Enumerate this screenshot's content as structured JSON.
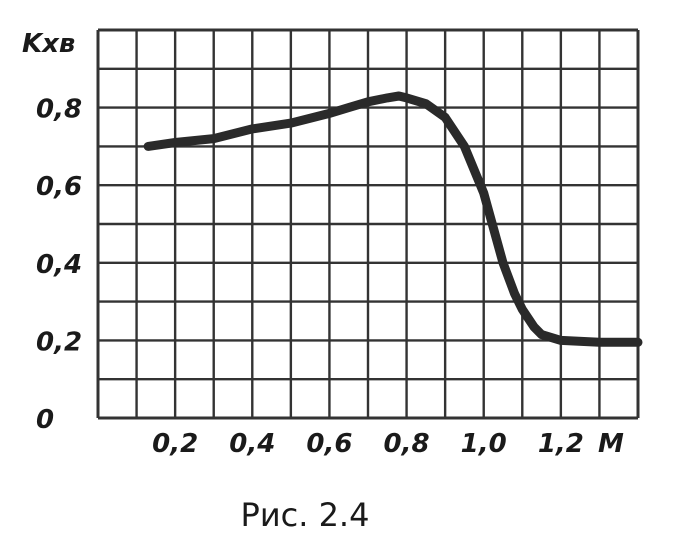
{
  "caption": "Рис. 2.4",
  "chart_data": {
    "type": "line",
    "title": "",
    "xlabel": "M",
    "ylabel": "Kxв",
    "xlim": [
      0,
      1.4
    ],
    "ylim": [
      0,
      1.0
    ],
    "grid": true,
    "x_ticks": [
      "0,2",
      "0,4",
      "0,6",
      "0,8",
      "1,0",
      "1,2"
    ],
    "x_tick_values": [
      0.2,
      0.4,
      0.6,
      0.8,
      1.0,
      1.2
    ],
    "y_ticks": [
      "0",
      "0,2",
      "0,4",
      "0,6",
      "0,8"
    ],
    "y_tick_values": [
      0,
      0.2,
      0.4,
      0.6,
      0.8
    ],
    "series": [
      {
        "color": "#2a2a2a",
        "x": [
          0.13,
          0.2,
          0.3,
          0.4,
          0.5,
          0.6,
          0.65,
          0.7,
          0.75,
          0.78,
          0.8,
          0.85,
          0.9,
          0.95,
          1.0,
          1.05,
          1.08,
          1.1,
          1.13,
          1.15,
          1.2,
          1.3,
          1.4
        ],
        "y": [
          0.7,
          0.71,
          0.72,
          0.745,
          0.76,
          0.785,
          0.8,
          0.815,
          0.825,
          0.83,
          0.825,
          0.81,
          0.775,
          0.7,
          0.58,
          0.4,
          0.32,
          0.28,
          0.235,
          0.215,
          0.2,
          0.195,
          0.195
        ]
      }
    ]
  }
}
